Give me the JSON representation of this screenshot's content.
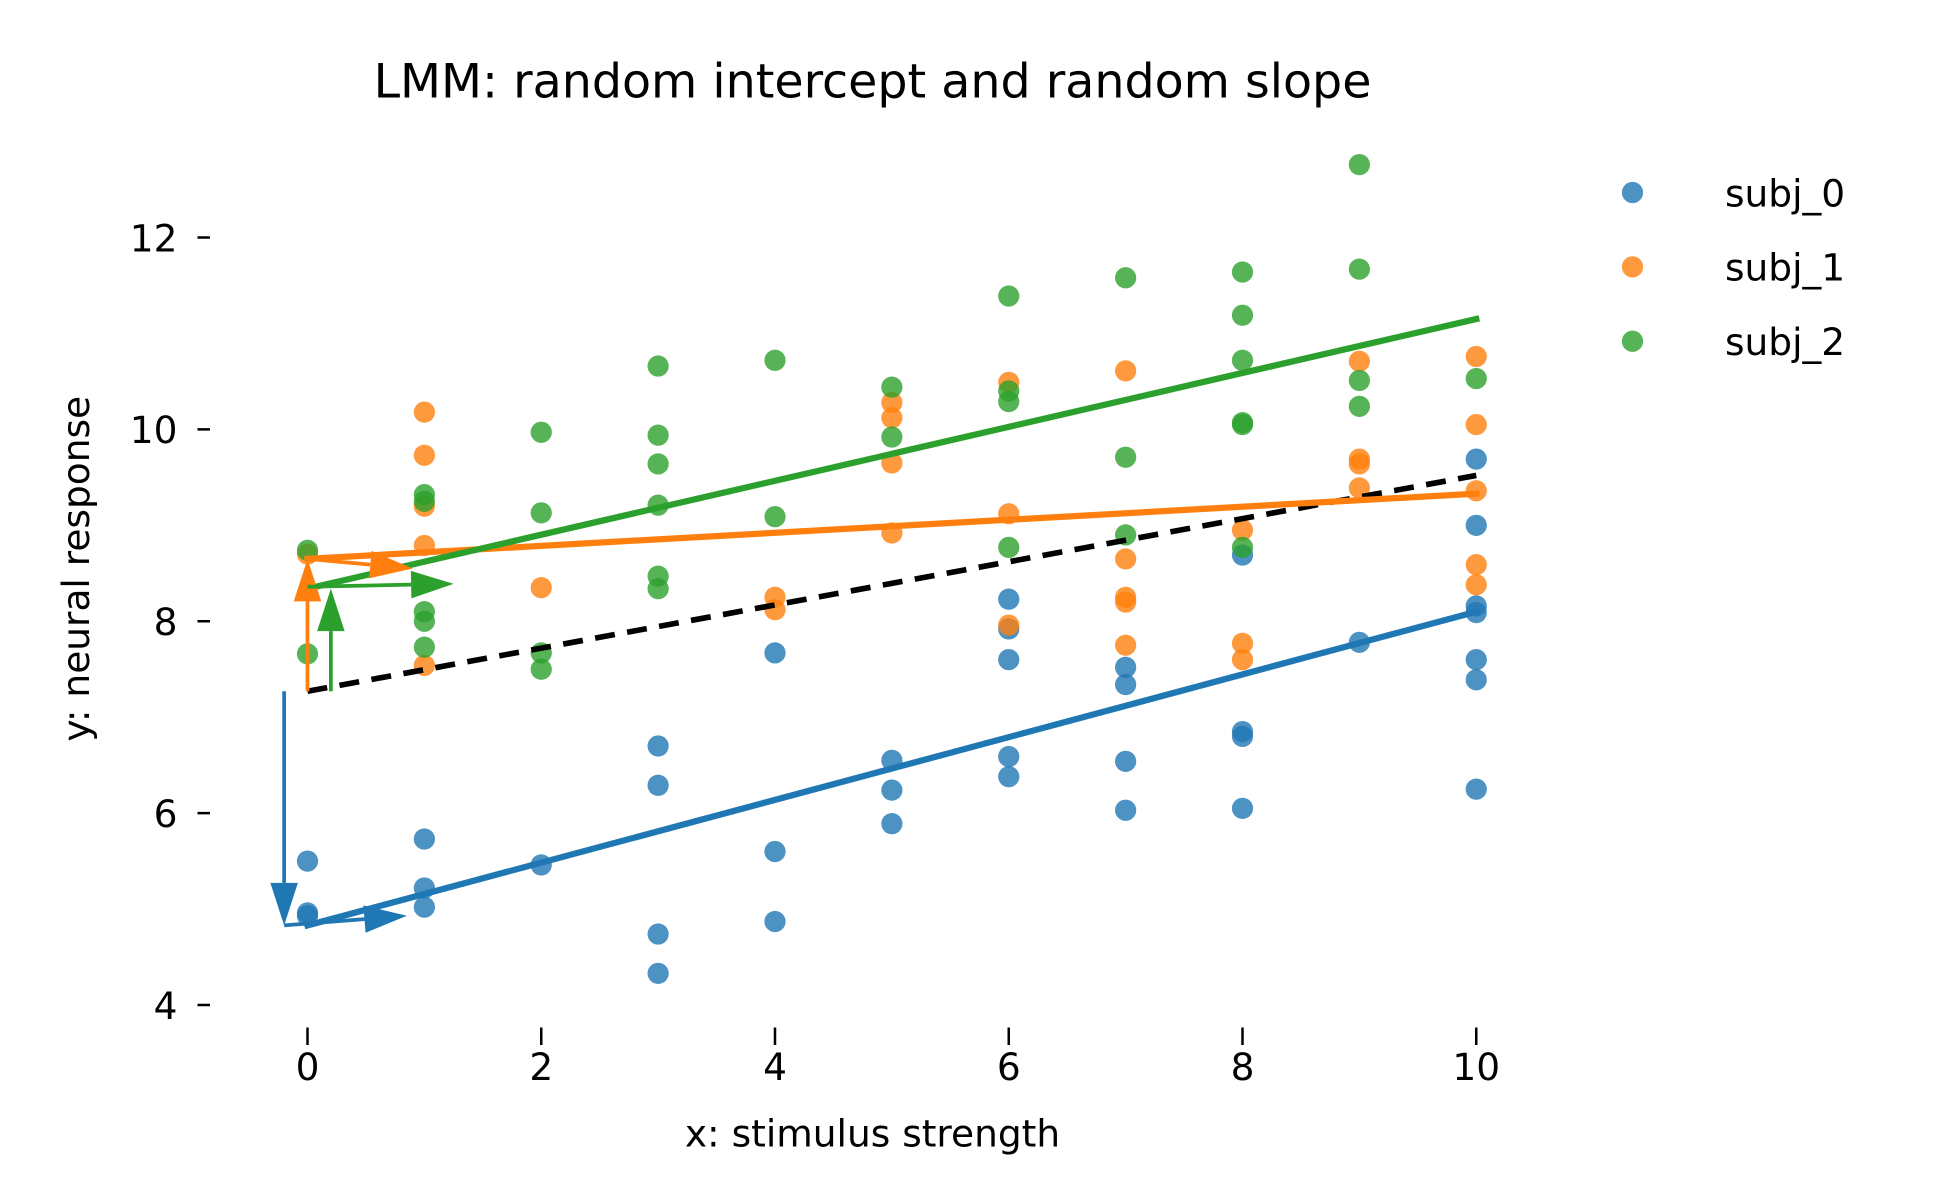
{
  "chart_data": {
    "type": "scatter",
    "title": "LMM: random intercept and random slope",
    "xlabel": "x: stimulus strength",
    "ylabel": "y: neural response",
    "xlim": [
      -0.8,
      10.8
    ],
    "ylim": [
      4,
      12.9
    ],
    "xticks": [
      0,
      2,
      4,
      6,
      8,
      10
    ],
    "xtick_labels": [
      "0",
      "2",
      "4",
      "6",
      "8",
      "10"
    ],
    "yticks": [
      4,
      6,
      8,
      10,
      12
    ],
    "ytick_labels": [
      "4",
      "6",
      "8",
      "10",
      "12"
    ],
    "grid": false,
    "legend_placement": "outside-top-right",
    "series": [
      {
        "name": "subj_0",
        "color": "#1f77b4",
        "x": [
          0,
          0,
          0,
          1,
          1,
          1,
          2,
          3,
          3,
          3,
          3,
          4,
          4,
          4,
          5,
          5,
          5,
          6,
          6,
          6,
          6,
          6,
          7,
          7,
          7,
          7,
          8,
          8,
          8,
          8,
          9,
          10,
          10,
          10,
          10,
          10,
          10,
          10
        ],
        "y": [
          5.5,
          4.96,
          4.93,
          5.73,
          5.22,
          5.02,
          5.46,
          6.7,
          6.29,
          4.74,
          4.33,
          7.67,
          5.6,
          4.87,
          6.55,
          6.24,
          5.89,
          8.23,
          7.92,
          7.6,
          6.59,
          6.38,
          7.52,
          7.34,
          6.54,
          6.03,
          8.69,
          6.85,
          6.8,
          6.05,
          7.78,
          9.69,
          9.0,
          8.16,
          8.09,
          7.6,
          7.39,
          6.25
        ],
        "fit": {
          "x": [
            0,
            10
          ],
          "y": [
            4.83,
            8.1
          ]
        }
      },
      {
        "name": "subj_1",
        "color": "#ff7f0e",
        "x": [
          0,
          1,
          1,
          1,
          1,
          1,
          2,
          4,
          4,
          5,
          5,
          5,
          5,
          6,
          6,
          6,
          7,
          7,
          7,
          7,
          7,
          8,
          8,
          8,
          9,
          9,
          9,
          9,
          10,
          10,
          10,
          10,
          10
        ],
        "y": [
          8.7,
          10.18,
          9.73,
          9.2,
          8.79,
          7.54,
          8.35,
          8.25,
          8.12,
          10.28,
          10.12,
          9.65,
          8.92,
          10.49,
          9.12,
          7.96,
          10.61,
          8.65,
          8.25,
          8.2,
          7.75,
          8.95,
          7.77,
          7.6,
          10.71,
          9.69,
          9.64,
          9.39,
          10.76,
          10.05,
          9.36,
          8.59,
          8.38
        ],
        "fit": {
          "x": [
            0,
            10
          ],
          "y": [
            8.65,
            9.33
          ]
        }
      },
      {
        "name": "subj_2",
        "color": "#2ca02c",
        "x": [
          0,
          0,
          1,
          1,
          1,
          1,
          1,
          2,
          2,
          2,
          2,
          3,
          3,
          3,
          3,
          3,
          3,
          4,
          4,
          5,
          5,
          6,
          6,
          6,
          6,
          7,
          7,
          7,
          8,
          8,
          8,
          8,
          8,
          8,
          9,
          9,
          9,
          9,
          10
        ],
        "y": [
          8.74,
          7.66,
          9.32,
          9.25,
          8.1,
          8.0,
          7.73,
          9.97,
          9.13,
          7.67,
          7.5,
          10.66,
          9.94,
          9.64,
          9.21,
          8.47,
          8.34,
          10.72,
          9.09,
          10.44,
          9.92,
          11.39,
          10.4,
          10.29,
          8.77,
          11.58,
          9.71,
          8.9,
          11.64,
          11.19,
          10.72,
          10.07,
          10.05,
          8.77,
          12.76,
          11.67,
          10.51,
          10.24,
          10.53
        ],
        "fit": {
          "x": [
            0,
            10
          ],
          "y": [
            8.34,
            11.15
          ]
        }
      }
    ],
    "fixed_effect_line": {
      "color": "#000000",
      "style": "dashed",
      "x": [
        0,
        10
      ],
      "y": [
        7.27,
        9.52
      ]
    },
    "annotations": {
      "arrows": [
        {
          "color": "#1f77b4",
          "from": [
            -0.2,
            7.27
          ],
          "to": [
            -0.2,
            4.83
          ],
          "kind": "intercept-offset"
        },
        {
          "color": "#1f77b4",
          "from": [
            -0.2,
            4.83
          ],
          "to": [
            0.85,
            4.93
          ],
          "kind": "slope"
        },
        {
          "color": "#ff7f0e",
          "from": [
            0,
            7.27
          ],
          "to": [
            0,
            8.65
          ],
          "kind": "intercept-offset"
        },
        {
          "color": "#ff7f0e",
          "from": [
            0,
            8.65
          ],
          "to": [
            0.9,
            8.55
          ],
          "kind": "slope"
        },
        {
          "color": "#2ca02c",
          "from": [
            0.2,
            7.27
          ],
          "to": [
            0.2,
            8.34
          ],
          "kind": "intercept-offset"
        },
        {
          "color": "#2ca02c",
          "from": [
            0,
            8.36
          ],
          "to": [
            1.25,
            8.39
          ],
          "kind": "slope"
        }
      ]
    }
  }
}
